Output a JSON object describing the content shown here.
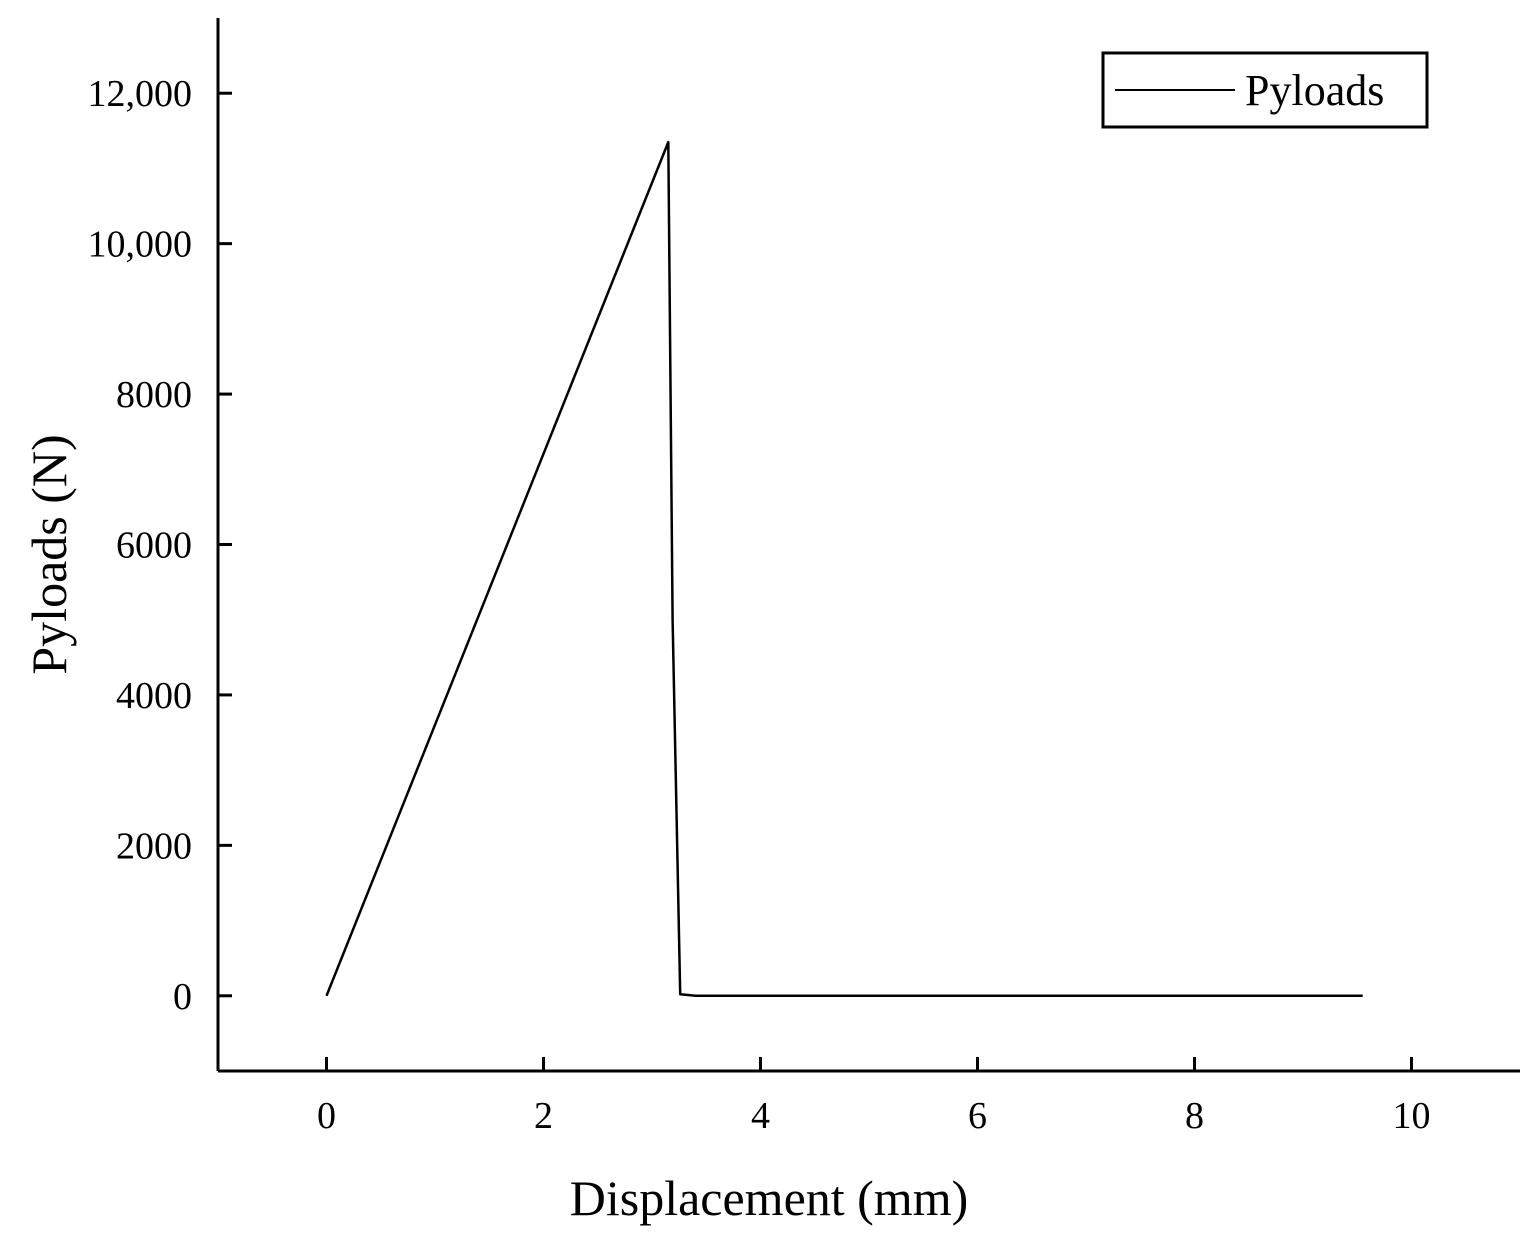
{
  "chart_data": {
    "type": "line",
    "title": "",
    "xlabel": "Displacement (mm)",
    "ylabel": "Pyloads (N)",
    "xlim": [
      -1,
      11
    ],
    "ylim": [
      -1000,
      13000
    ],
    "x_ticks": [
      0,
      2,
      4,
      6,
      8,
      10
    ],
    "x_tick_labels": [
      "0",
      "2",
      "4",
      "6",
      "8",
      "10"
    ],
    "y_ticks": [
      0,
      2000,
      4000,
      6000,
      8000,
      10000,
      12000
    ],
    "y_tick_labels": [
      "0",
      "2000",
      "4000",
      "6000",
      "8000",
      "10,000",
      "12,000"
    ],
    "grid": false,
    "legend_position": "top-right",
    "series": [
      {
        "name": "Pyloads",
        "color": "#000000",
        "points": [
          {
            "x": 0,
            "y": 0
          },
          {
            "x": 3.15,
            "y": 11350
          },
          {
            "x": 3.19,
            "y": 5000
          },
          {
            "x": 3.26,
            "y": 20
          },
          {
            "x": 3.4,
            "y": 0
          },
          {
            "x": 9.55,
            "y": 0
          }
        ]
      }
    ]
  }
}
